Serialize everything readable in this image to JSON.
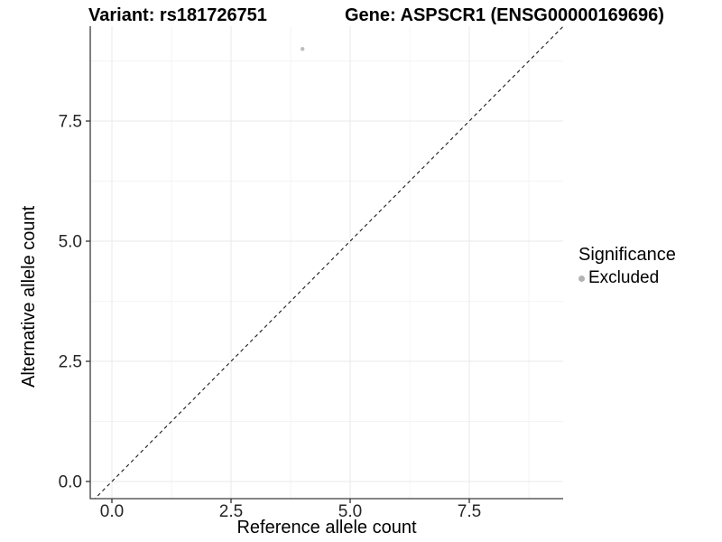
{
  "chart_data": {
    "type": "scatter",
    "titles": {
      "left": "Variant: rs181726751",
      "right": "Gene: ASPSCR1 (ENSG00000169696)"
    },
    "xlabel": "Reference allele count",
    "ylabel": "Alternative allele count",
    "xlim": [
      -0.45,
      9.47
    ],
    "ylim": [
      -0.38,
      9.47
    ],
    "x_ticks": {
      "values": [
        0,
        2.5,
        5,
        7.5
      ],
      "labels": [
        "0.0",
        "2.5",
        "5.0",
        "7.5"
      ]
    },
    "y_ticks": {
      "values": [
        0,
        2.5,
        5,
        7.5
      ],
      "labels": [
        "0.0",
        "2.5",
        "5.0",
        "7.5"
      ]
    },
    "grid": {
      "major": true,
      "minor": true,
      "minor_step": 1.25
    },
    "series": [
      {
        "name": "Excluded",
        "color": "#bdbdbd",
        "point_radius": 2.2,
        "points": [
          {
            "x": 4,
            "y": 9
          }
        ]
      }
    ],
    "reference_line": {
      "kind": "identity y=x",
      "style": "dashed",
      "color": "#1a1a1a"
    },
    "legend": {
      "position": "right",
      "title": "Significance",
      "items": [
        {
          "label": "Excluded",
          "color": "#b3b3b3"
        }
      ]
    }
  },
  "colors": {
    "grid_major": "#e8e8e8",
    "grid_minor": "#f4f4f4",
    "axis_line": "#3c3c3c",
    "tick_mark": "#333333",
    "tick_label": "#262626"
  }
}
